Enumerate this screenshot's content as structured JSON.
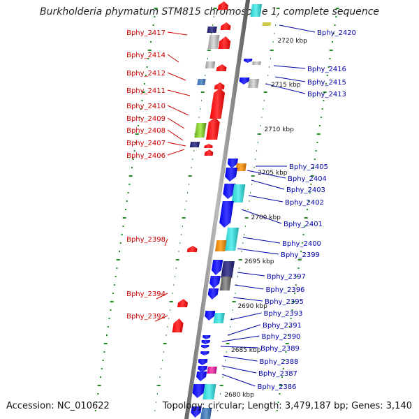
{
  "title": "Burkholderia phymatum STM815 chromosome 1, complete sequence",
  "footer": {
    "accession_label": "Accession:",
    "accession": "NC_010622",
    "topology_label": "Topology:",
    "topology": "circular",
    "length_label": "Length:",
    "length": "3,479,187 bp",
    "genes_label": "Genes:",
    "genes": "3,140"
  },
  "colors": {
    "left_label": "#cc0000",
    "right_label": "#0000aa",
    "tick": "#228b22",
    "backbone": "#888888"
  },
  "scale_labels": [
    "2720 kbp",
    "2715 kbp",
    "2710 kbp",
    "2705 kbp",
    "2700 kbp",
    "2695 kbp",
    "2690 kbp",
    "2685 kbp",
    "2680 kbp"
  ],
  "left_labels": [
    "Bphy_2417",
    "Bphy_2414",
    "Bphy_2412",
    "Bphy_2411",
    "Bphy_2410",
    "Bphy_2409",
    "Bphy_2408",
    "Bphy_2407",
    "Bphy_2406",
    "Bphy_2398",
    "Bphy_2394",
    "Bphy_2392"
  ],
  "right_labels": [
    "Bphy_2420",
    "Bphy_2416",
    "Bphy_2415",
    "Bphy_2413",
    "Bphy_2405",
    "Bphy_2404",
    "Bphy_2403",
    "Bphy_2402",
    "Bphy_2401",
    "Bphy_2400",
    "Bphy_2399",
    "Bphy_2397",
    "Bphy_2396",
    "Bphy_2395",
    "Bphy_2393",
    "Bphy_2391",
    "Bphy_2390",
    "Bphy_2389",
    "Bphy_2388",
    "Bphy_2387",
    "Bphy_2386"
  ]
}
